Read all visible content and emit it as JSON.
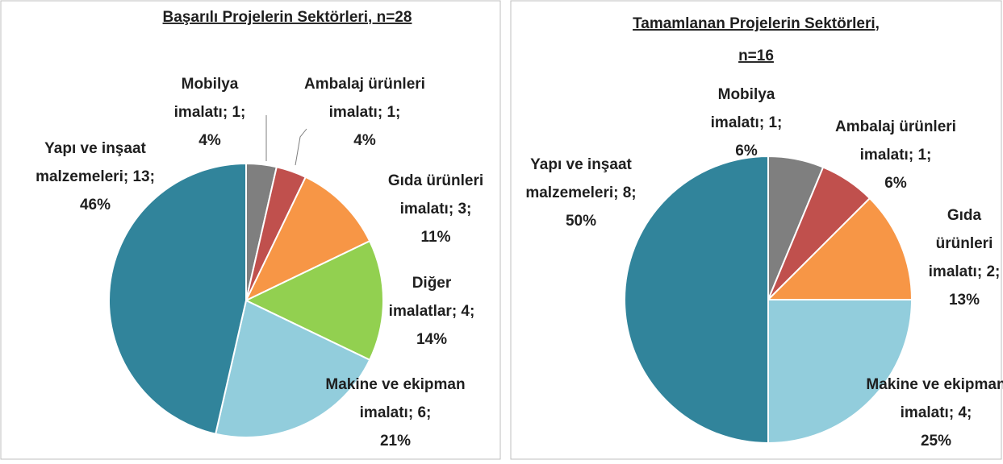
{
  "chart_data": [
    {
      "type": "pie",
      "title": [
        "Başarılı Projelerin Sektörleri, n=28"
      ],
      "categories": [
        "Mobilya imalatı",
        "Ambalaj ürünleri imalatı",
        "Gıda ürünleri imalatı",
        "Diğer imalatlar",
        "Makine ve ekipman imalatı",
        "Yapı ve inşaat malzemeleri"
      ],
      "values": [
        1,
        1,
        3,
        4,
        6,
        13
      ],
      "value_labels": [
        [
          "Mobilya",
          "imalatı; 1;",
          "4%"
        ],
        [
          "Ambalaj ürünleri",
          "imalatı; 1;",
          "4%"
        ],
        [
          "Gıda ürünleri",
          "imalatı; 3;",
          "11%"
        ],
        [
          "Diğer",
          "imalatlar; 4;",
          "14%"
        ],
        [
          "Makine ve ekipman",
          "imalatı; 6;",
          "21%"
        ],
        [
          "Yapı ve inşaat",
          "malzemeleri; 13;",
          "46%"
        ]
      ],
      "colors": [
        "#7f7f7f",
        "#c0504d",
        "#f79646",
        "#92d050",
        "#92cddc",
        "#31849b"
      ]
    },
    {
      "type": "pie",
      "title": [
        "Tamamlanan Projelerin Sektörleri,",
        "n=16"
      ],
      "categories": [
        "Mobilya imalatı",
        "Ambalaj ürünleri imalatı",
        "Gıda ürünleri imalatı",
        "Makine ve ekipman imalatı",
        "Yapı ve inşaat malzemeleri"
      ],
      "values": [
        1,
        1,
        2,
        4,
        8
      ],
      "value_labels": [
        [
          "Mobilya",
          "imalatı; 1;",
          "6%"
        ],
        [
          "Ambalaj ürünleri",
          "imalatı; 1;",
          "6%"
        ],
        [
          "Gıda",
          "ürünleri",
          "imalatı; 2;",
          "13%"
        ],
        [
          "Makine ve ekipman",
          "imalatı; 4;",
          "25%"
        ],
        [
          "Yapı ve inşaat",
          "malzemeleri; 8;",
          "50%"
        ]
      ],
      "colors": [
        "#7f7f7f",
        "#c0504d",
        "#f79646",
        "#92cddc",
        "#31849b"
      ]
    }
  ]
}
